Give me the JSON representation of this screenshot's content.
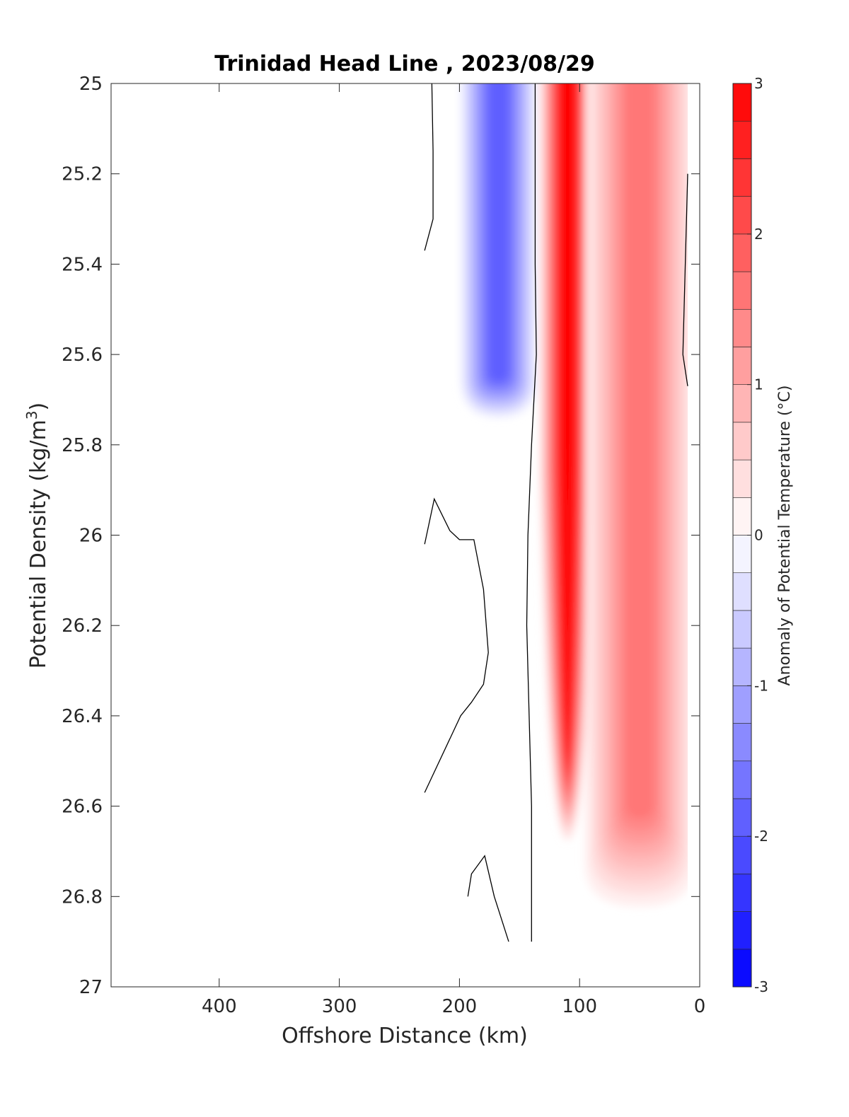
{
  "chart_data": {
    "type": "contourf",
    "title": "Trinidad Head Line , 2023/08/29",
    "xlabel": "Offshore Distance (km)",
    "ylabel_main": "Potential Density (kg/m",
    "ylabel_sup": "3",
    "ylabel_close": ")",
    "colorbar_label": "Anomaly of Potential Temperature (°C)",
    "xlim": [
      490,
      0
    ],
    "x_reversed": true,
    "ylim": [
      25,
      27
    ],
    "y_reversed": true,
    "x_ticks": [
      400,
      300,
      200,
      100,
      0
    ],
    "x_tick_labels": [
      "400",
      "300",
      "200",
      "100",
      "0"
    ],
    "y_ticks": [
      25,
      25.2,
      25.4,
      25.6,
      25.8,
      26,
      26.2,
      26.4,
      26.6,
      26.8,
      27
    ],
    "y_tick_labels": [
      "25",
      "25.2",
      "25.4",
      "25.6",
      "25.8",
      "26",
      "26.2",
      "26.4",
      "26.6",
      "26.8",
      "27"
    ],
    "colorbar": {
      "min": -3,
      "max": 3,
      "levels": 24,
      "ticks": [
        -3,
        -2,
        -1,
        0,
        1,
        2,
        3
      ],
      "tick_labels": [
        "-3",
        "-2",
        "-1",
        "0",
        "1",
        "2",
        "3"
      ],
      "cold_color": "#0000ff",
      "warm_color": "#ff0000",
      "neutral_color": "#ffffff"
    },
    "data_extent": {
      "x_min": 10,
      "x_max": 230,
      "y_min": 25,
      "y_max": 26.9
    },
    "features": [
      {
        "kind": "cold_core",
        "x_range": [
          195,
          140
        ],
        "y_range": [
          25,
          25.75
        ],
        "min_anomaly": -1.9
      },
      {
        "kind": "warm_core",
        "x_range": [
          130,
          90
        ],
        "y_range": [
          25,
          26.7
        ],
        "max_anomaly": 3.0
      },
      {
        "kind": "warm_fringe",
        "x_range": [
          90,
          10
        ],
        "y_range": [
          25,
          26.85
        ],
        "max_anomaly": 1.6
      }
    ],
    "zero_contours": [
      {
        "name": "front",
        "points": [
          [
            137,
            25
          ],
          [
            137,
            25.4
          ],
          [
            136,
            25.6
          ],
          [
            140,
            25.8
          ],
          [
            143,
            26
          ],
          [
            144,
            26.2
          ],
          [
            142,
            26.4
          ],
          [
            140,
            26.6
          ],
          [
            140,
            26.9
          ]
        ]
      },
      {
        "name": "offshore-upper",
        "points": [
          [
            223,
            25
          ],
          [
            222,
            25.15
          ],
          [
            222,
            25.3
          ],
          [
            229,
            25.37
          ]
        ]
      },
      {
        "name": "nearshore",
        "points": [
          [
            10,
            25.2
          ],
          [
            12,
            25.4
          ],
          [
            14,
            25.6
          ],
          [
            10,
            25.67
          ]
        ]
      },
      {
        "name": "offshore-mid",
        "points": [
          [
            229,
            26.02
          ],
          [
            221,
            25.92
          ],
          [
            208,
            25.99
          ],
          [
            200,
            26.01
          ],
          [
            188,
            26.01
          ],
          [
            180,
            26.12
          ],
          [
            176,
            26.26
          ],
          [
            180,
            26.33
          ],
          [
            190,
            26.37
          ],
          [
            199,
            26.4
          ],
          [
            229,
            26.57
          ]
        ]
      },
      {
        "name": "offshore-deep",
        "points": [
          [
            193,
            26.8
          ],
          [
            190,
            26.75
          ],
          [
            179,
            26.71
          ],
          [
            171,
            26.8
          ],
          [
            159,
            26.9
          ]
        ]
      }
    ]
  }
}
